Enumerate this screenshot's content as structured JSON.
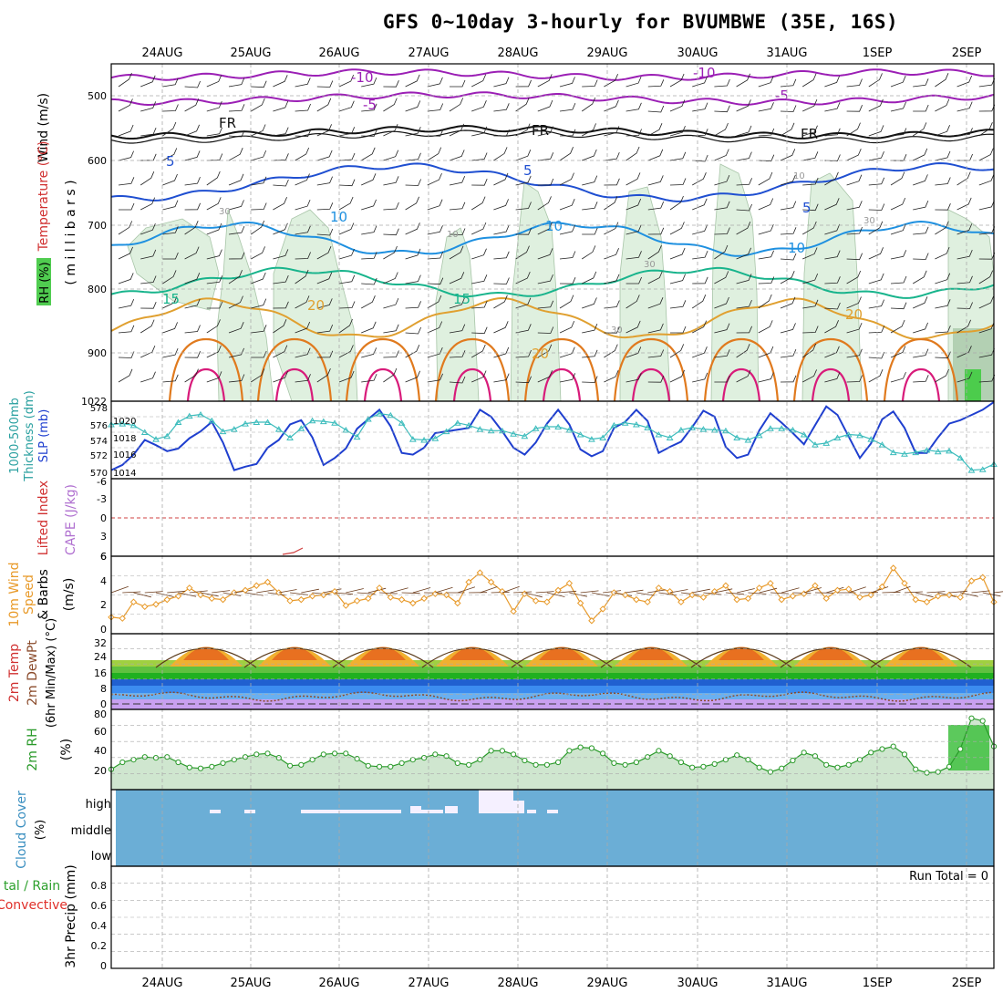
{
  "title": "GFS 0~10day 3-hourly for BVUMBWE (35E, 16S)",
  "dates": [
    "24AUG",
    "25AUG",
    "26AUG",
    "27AUG",
    "28AUG",
    "29AUG",
    "30AUG",
    "31AUG",
    "1SEP",
    "2SEP"
  ],
  "colors": {
    "grid": "#aaaaaa",
    "temp_neg10": "#9b1fb5",
    "temp_neg5": "#9b1fb5",
    "temp_0": "#111111",
    "temp_5": "#1f4fd1",
    "temp_10": "#1e90e0",
    "temp_15": "#18b48c",
    "temp_20": "#e0a030",
    "temp_25": "#e07a1e",
    "temp_30": "#d81b7a",
    "rh_fill": "#dcefdc",
    "slp": "#1f3fcf",
    "thickness": "#3bbcbc",
    "wind": "#e89a2a",
    "rh2m": "#2a9a2a",
    "cloud": "#6baed6",
    "cloud_high": "#f5f0ff",
    "precip_label_total": "#2ca02c",
    "precip_label_conv": "#e0302a"
  },
  "panels": {
    "upper_air": {
      "ylabels": {
        "wind": "Wind (m/s)",
        "temperature": "Temperature (°C)",
        "rh": "RH (%)",
        "mb": "( m i l l i b a r s )"
      },
      "yticks": [
        "500",
        "600",
        "700",
        "800",
        "900",
        "1022"
      ],
      "contour_labels": [
        "-10",
        "-10",
        "-5",
        "-5",
        "FR",
        "FR",
        "FR",
        "5",
        "5",
        "5",
        "10",
        "10",
        "10",
        "15",
        "15",
        "20",
        "20",
        "20",
        "30",
        "30",
        "30",
        "30",
        "10",
        "10"
      ]
    },
    "slp": {
      "ylabel_left": "Thickness (dm)",
      "ylabel_left2": "1000-500mb",
      "ylabel_right": "SLP (mb)",
      "yticks_left": [
        "578",
        "576",
        "574",
        "572",
        "570"
      ],
      "yticks_right": [
        "1020",
        "1018",
        "1016",
        "1014"
      ]
    },
    "cape": {
      "ylabel_a": "Lifted Index",
      "ylabel_b": "CAPE (J/kg)",
      "yticks": [
        "-6",
        "-3",
        "0",
        "3",
        "6"
      ]
    },
    "wind10": {
      "ylabel_a": "10m Wind",
      "ylabel_b": "Speed",
      "ylabel_c": "& Barbs",
      "ylabel_d": "(m/s)",
      "yticks": [
        "6",
        "4",
        "2",
        "0"
      ]
    },
    "temp2m": {
      "ylabel_a": "2m Temp",
      "ylabel_b": "2m DewPt",
      "ylabel_c": "(6hr Min/Max) (°C)",
      "yticks": [
        "32",
        "24",
        "16",
        "8",
        "0"
      ]
    },
    "rh2m": {
      "ylabel_a": "2m RH",
      "ylabel_b": "(%)",
      "yticks": [
        "80",
        "60",
        "40",
        "20"
      ]
    },
    "cloud": {
      "ylabel_a": "Cloud Cover",
      "ylabel_b": "(%)",
      "levels": [
        "high",
        "middle",
        "low"
      ]
    },
    "precip": {
      "ylabel_a": "tal / Rain",
      "ylabel_b": "Convective",
      "ylabel_c": "3hr Precip (mm)",
      "yticks": [
        "0.8",
        "0.6",
        "0.4",
        "0.2",
        "0"
      ],
      "run_total": "Run Total = 0"
    }
  },
  "chart_data": [
    {
      "type": "line",
      "title": "SLP (mb)",
      "ylim": [
        1013,
        1022
      ],
      "x_steps": 80,
      "series": [
        {
          "name": "SLP (mb)",
          "values": [
            1014,
            1014.6,
            1015.8,
            1017.5,
            1016.9,
            1016.2,
            1016.5,
            1017.7,
            1018.5,
            1019.6,
            1017.2,
            1014,
            1014.4,
            1014.7,
            1016.6,
            1017.5,
            1019.3,
            1019.8,
            1017.8,
            1014.6,
            1015.4,
            1016.5,
            1018.8,
            1019.9,
            1021,
            1019.1,
            1016,
            1015.8,
            1016.6,
            1018.3,
            1018.5,
            1018.7,
            1018.9,
            1021,
            1020.2,
            1018.5,
            1016.6,
            1015.8,
            1017.2,
            1019.4,
            1021,
            1019.3,
            1016.4,
            1015.6,
            1016.2,
            1018.9,
            1019.6,
            1021,
            1019.7,
            1016,
            1016.7,
            1017.3,
            1019,
            1020.9,
            1020.2,
            1016.7,
            1015.4,
            1015.8,
            1018.6,
            1020.6,
            1019.5,
            1018.3,
            1017,
            1019.2,
            1021.4,
            1020.4,
            1017.9,
            1015.4,
            1017.1,
            1019.9,
            1020.8,
            1018.9,
            1016,
            1016,
            1017.8,
            1019.4,
            1019.8,
            1020.4,
            1021,
            1021.9
          ]
        }
      ]
    },
    {
      "type": "line",
      "title": "Thickness (dm)",
      "ylim": [
        569,
        579
      ],
      "series": [
        {
          "name": "1000-500mb Thickness",
          "values": [
            576,
            576.1,
            575.9,
            575,
            574.1,
            574.5,
            576.3,
            577.1,
            577.3,
            576.5,
            575.1,
            575.4,
            576.1,
            576.3,
            576.3,
            575.4,
            574.3,
            575.5,
            576.5,
            576.4,
            576.2,
            575.3,
            574.4,
            576.7,
            577.4,
            577.2,
            576.2,
            574.1,
            574,
            574.2,
            575.1,
            576.2,
            575.9,
            575.4,
            575.2,
            575.2,
            574.8,
            574.5,
            575.5,
            575.7,
            575.7,
            575.3,
            574.7,
            574.1,
            574.3,
            575.9,
            576.2,
            576,
            575.6,
            574.7,
            574.3,
            575.3,
            575.6,
            575.4,
            575.3,
            575.2,
            574.3,
            574,
            574.6,
            575.5,
            575.5,
            575.3,
            574.7,
            573.4,
            573.6,
            574.3,
            574.7,
            574.6,
            574.1,
            573.4,
            572.4,
            572.2,
            572.4,
            572.7,
            572.5,
            572.6,
            571.7,
            570.1,
            570.2,
            570.9
          ]
        }
      ]
    },
    {
      "type": "line",
      "title": "10m Wind Speed (m/s)",
      "ylim": [
        0,
        6
      ],
      "series": [
        {
          "name": "Speed",
          "values": [
            1.1,
            1.0,
            2.4,
            2.0,
            2.2,
            2.6,
            2.9,
            3.6,
            3.0,
            2.7,
            2.6,
            3.2,
            3.4,
            3.8,
            4.1,
            3.2,
            2.5,
            2.6,
            2.9,
            3.0,
            3.3,
            2.1,
            2.5,
            2.7,
            3.6,
            2.8,
            2.6,
            2.3,
            2.7,
            3.1,
            3.0,
            2.3,
            4.1,
            4.9,
            4.1,
            3.3,
            1.6,
            3.1,
            2.5,
            2.4,
            3.4,
            4.0,
            2.3,
            0.8,
            1.8,
            3.2,
            3.0,
            2.6,
            2.4,
            3.6,
            3.3,
            2.4,
            3.0,
            2.8,
            3.3,
            3.8,
            2.6,
            2.7,
            3.6,
            4.0,
            2.6,
            2.9,
            3.1,
            3.8,
            2.7,
            3.4,
            3.5,
            2.8,
            3.0,
            3.7,
            5.3,
            4.0,
            2.6,
            2.4,
            2.9,
            3.0,
            2.8,
            4.2,
            4.5,
            2.4
          ]
        }
      ]
    },
    {
      "type": "line",
      "title": "2m RH (%)",
      "ylim": [
        0,
        85
      ],
      "series": [
        {
          "name": "2m RH",
          "values": [
            19,
            27,
            30,
            33,
            32,
            33,
            27,
            21,
            20,
            22,
            26,
            30,
            33,
            36,
            37,
            32,
            23,
            24,
            30,
            36,
            37,
            37,
            31,
            23,
            22,
            22,
            26,
            30,
            32,
            36,
            34,
            26,
            24,
            30,
            40,
            40,
            36,
            29,
            24,
            24,
            27,
            40,
            44,
            43,
            37,
            26,
            24,
            27,
            33,
            40,
            34,
            27,
            21,
            22,
            25,
            30,
            35,
            30,
            21,
            16,
            20,
            29,
            38,
            34,
            24,
            21,
            24,
            30,
            38,
            42,
            45,
            36,
            19,
            15,
            16,
            22,
            42,
            77,
            74,
            45
          ]
        }
      ]
    }
  ]
}
